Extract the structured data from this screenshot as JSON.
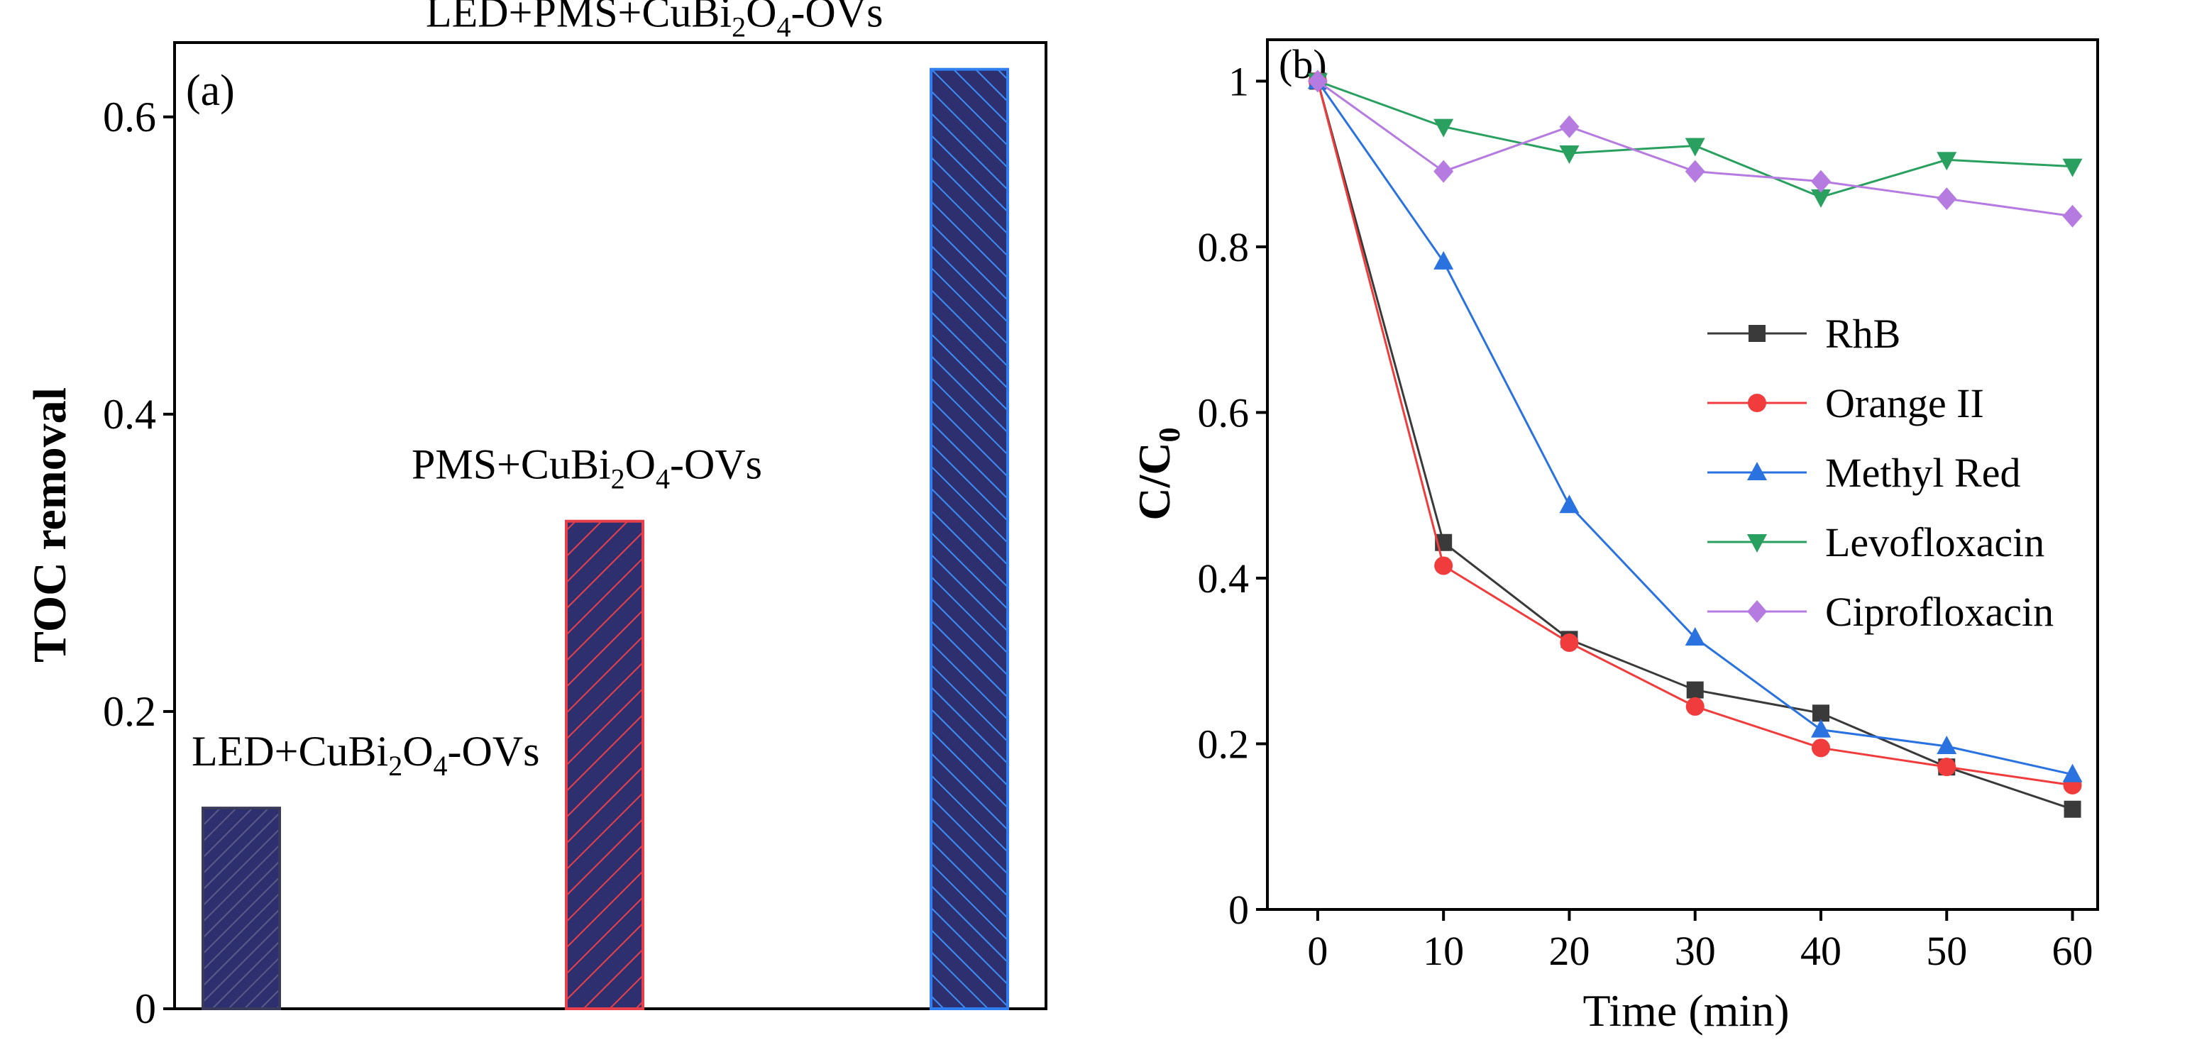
{
  "chart_data": [
    {
      "panel_label": "(a)",
      "type": "bar",
      "ylabel": "TOC removal",
      "ylim": [
        0,
        0.65
      ],
      "yticks": [
        "0",
        "0.2",
        "0.4",
        "0.6"
      ],
      "ytick_values": [
        0,
        0.2,
        0.4,
        0.6
      ],
      "categories": [
        {
          "base": "LED+CuBi",
          "sub1": "2",
          "mid": "O",
          "sub2": "4",
          "tail": "-OVs",
          "value": 0.135,
          "fill": "#2e2f6e",
          "edge": "#3a3a5a",
          "hatch": "#5a5a8a"
        },
        {
          "base": "PMS+CuBi",
          "sub1": "2",
          "mid": "O",
          "sub2": "4",
          "tail": "-OVs",
          "value": 0.328,
          "fill": "#2e2f6e",
          "edge": "#e8404a",
          "hatch": "#e8404a"
        },
        {
          "base": "LED+PMS+CuBi",
          "sub1": "2",
          "mid": "O",
          "sub2": "4",
          "tail": "-OVs",
          "value": 0.632,
          "fill": "#2e2f6e",
          "edge": "#2f7ff0",
          "hatch": "#3d8ef5"
        }
      ]
    },
    {
      "panel_label": "(b)",
      "type": "line",
      "xlabel": "Time (min)",
      "ylabel_base": "C/C",
      "ylabel_sub": "0",
      "xlim": [
        -4,
        62
      ],
      "ylim": [
        0,
        1.05
      ],
      "x": [
        0,
        10,
        20,
        30,
        40,
        50,
        60
      ],
      "xticks": [
        "0",
        "10",
        "20",
        "30",
        "40",
        "50",
        "60"
      ],
      "yticks": [
        "0",
        "0.2",
        "0.4",
        "0.6",
        "0.8",
        "1"
      ],
      "ytick_values": [
        0,
        0.2,
        0.4,
        0.6,
        0.8,
        1.0
      ],
      "series": [
        {
          "name": "RhB",
          "color": "#3a3a3a",
          "marker": "square",
          "values": [
            1.0,
            0.443,
            0.326,
            0.265,
            0.237,
            0.172,
            0.121
          ]
        },
        {
          "name": "Orange II",
          "color": "#f03c3c",
          "marker": "circle",
          "values": [
            1.0,
            0.415,
            0.322,
            0.245,
            0.195,
            0.172,
            0.15
          ]
        },
        {
          "name": "Methyl Red",
          "color": "#2a72e0",
          "marker": "triangle-up",
          "values": [
            1.0,
            0.782,
            0.488,
            0.328,
            0.217,
            0.197,
            0.163
          ]
        },
        {
          "name": "Levofloxacin",
          "color": "#2aa060",
          "marker": "triangle-down",
          "values": [
            1.0,
            0.945,
            0.913,
            0.922,
            0.86,
            0.905,
            0.897
          ]
        },
        {
          "name": "Ciprofloxacin",
          "color": "#b57be0",
          "marker": "diamond",
          "values": [
            1.0,
            0.891,
            0.945,
            0.891,
            0.879,
            0.858,
            0.837
          ]
        }
      ]
    }
  ]
}
